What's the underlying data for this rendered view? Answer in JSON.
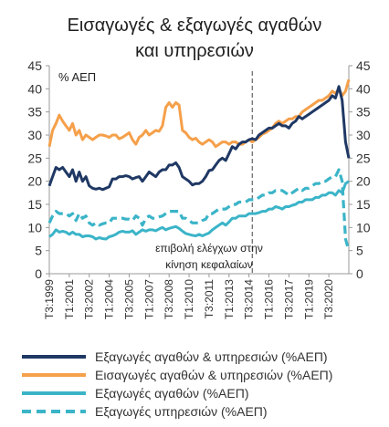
{
  "chart_data": {
    "type": "line",
    "title_lines": [
      "Εισαγωγές & εξαγωγές αγαθών",
      "και υπηρεσιών"
    ],
    "unit_label": "% ΑΕΠ",
    "ylim": [
      0,
      45
    ],
    "y_ticks": [
      0,
      5,
      10,
      15,
      20,
      25,
      30,
      35,
      40,
      45
    ],
    "y_ticks_right": [
      0,
      5,
      10,
      15,
      20,
      25,
      30,
      35,
      40,
      45
    ],
    "grid": false,
    "start": "T3:1999",
    "x_tick_labels": [
      "T3:1999",
      "T1:2001",
      "T3:2002",
      "T1:2004",
      "T3:2005",
      "T1:2007",
      "T3:2008",
      "T1:2010",
      "T3:2011",
      "T1:2013",
      "T3:2014",
      "T1:2016",
      "T3:2017",
      "T1:2019",
      "T3:2020"
    ],
    "reference_line": {
      "at": "T4:2014",
      "style": "dashed"
    },
    "annotation_lines": [
      "επιβολή ελέγχων στην",
      "κίνηση κεφαλαίων"
    ],
    "legend_position": "bottom",
    "series": [
      {
        "name": "Εξαγωγές αγαθών & υπηρεσιών (%ΑΕΠ)",
        "color": "#1f3864",
        "dash": false,
        "values": [
          19,
          21,
          23,
          22.5,
          23,
          22,
          21,
          22.5,
          20,
          22,
          20,
          21,
          19,
          18.5,
          18.3,
          18.5,
          18.2,
          18.5,
          18.8,
          20.5,
          20.5,
          21,
          21,
          21.2,
          21,
          20.5,
          20.8,
          21,
          20,
          21,
          22,
          21.5,
          21,
          22,
          22.5,
          22.5,
          23.5,
          23.5,
          24,
          23,
          21,
          20.5,
          20,
          19.2,
          19.5,
          19.5,
          20,
          21,
          22.3,
          22.5,
          23.5,
          24.5,
          25,
          24.5,
          26,
          27.5,
          27,
          28,
          28.5,
          28.5,
          29,
          29.2,
          29,
          30,
          30.5,
          31,
          31.5,
          31.5,
          32,
          32.5,
          32,
          32,
          31.5,
          32.5,
          33,
          34,
          33.5,
          34,
          34.5,
          35,
          35.5,
          36,
          36.5,
          37,
          37.5,
          38.5,
          38,
          40.5,
          37.5,
          28.5,
          25
        ]
      },
      {
        "name": "Εισαγωγές αγαθών & υπηρεσιών (%ΑΕΠ)",
        "color": "#f5a04a",
        "dash": false,
        "values": [
          27.5,
          31,
          32.5,
          34.3,
          33,
          32,
          31,
          32.5,
          30,
          31,
          29,
          30,
          29.5,
          29,
          29.5,
          30,
          30,
          29.8,
          29.5,
          30,
          30,
          29.2,
          29.5,
          30,
          30.5,
          29,
          28,
          29.5,
          30,
          31,
          30,
          30.5,
          31,
          30.8,
          32,
          36,
          37,
          36,
          37,
          36.5,
          31,
          30.5,
          29.5,
          29,
          29.3,
          28.5,
          28,
          28.5,
          29,
          28.5,
          27.5,
          28,
          28.5,
          28.5,
          28,
          28.5,
          28.5,
          28,
          28,
          28.5,
          29,
          28.5,
          29,
          29.5,
          30.2,
          30.5,
          31,
          31.5,
          32.5,
          33,
          32.5,
          33,
          33.5,
          33.5,
          34,
          34,
          35,
          35.5,
          36,
          36.5,
          37,
          37.5,
          37.5,
          38,
          38.5,
          39.5,
          39,
          40,
          38.5,
          39.5,
          42
        ]
      },
      {
        "name": "Εξαγωγές αγαθών (%ΑΕΠ)",
        "color": "#3bb4c8",
        "dash": false,
        "values": [
          8,
          8.5,
          9.5,
          9,
          9.2,
          9,
          8.5,
          9,
          8.5,
          8.5,
          8,
          8.2,
          8.2,
          8,
          7.5,
          7.8,
          7.6,
          7.5,
          8,
          8.2,
          8.5,
          9,
          9.2,
          9,
          9,
          9.3,
          8.5,
          9,
          9.5,
          9.2,
          9.5,
          9.5,
          9.3,
          9.7,
          10,
          9.5,
          9.8,
          10,
          10.2,
          9.8,
          9.2,
          8.7,
          8.5,
          8.3,
          8.2,
          8.5,
          8.2,
          8.5,
          8.8,
          9.5,
          10,
          10.5,
          11,
          10.5,
          11.2,
          12,
          12,
          12.5,
          12.5,
          12.5,
          13,
          13,
          13,
          13.2,
          13.5,
          13.5,
          14,
          14,
          14.5,
          14.3,
          14,
          14.5,
          14.5,
          14.8,
          15,
          15.5,
          15.5,
          16,
          16,
          16,
          16.5,
          16.5,
          17,
          17,
          17.5,
          17.5,
          17,
          18,
          17.5,
          19.5,
          20
        ]
      },
      {
        "name": "Εξαγωγές υπηρεσιών (%ΑΕΠ)",
        "color": "#3bb4c8",
        "dash": true,
        "values": [
          11,
          12.5,
          13.5,
          13,
          13,
          13,
          12.5,
          13,
          11.5,
          13,
          12,
          12.5,
          11,
          10.5,
          11,
          10.5,
          10.8,
          11,
          11,
          12,
          12,
          12,
          12,
          11.8,
          11.8,
          11.5,
          12.5,
          12,
          10.5,
          12,
          12.5,
          12,
          12,
          12.3,
          12.5,
          13,
          13.5,
          13.5,
          13.5,
          13.5,
          12,
          12,
          11.5,
          11,
          11,
          11,
          11.5,
          11.8,
          13,
          13,
          13.5,
          14,
          14,
          14,
          14.5,
          15,
          15,
          15.5,
          15.5,
          15.5,
          16,
          16,
          16,
          16.5,
          17,
          17,
          17.5,
          17.5,
          18,
          18,
          18,
          17.5,
          17,
          17.5,
          18,
          18.5,
          18,
          18.5,
          18.5,
          19,
          19.5,
          19.5,
          20,
          20,
          20.5,
          21,
          21,
          22.5,
          20,
          7.5,
          5
        ]
      }
    ]
  }
}
